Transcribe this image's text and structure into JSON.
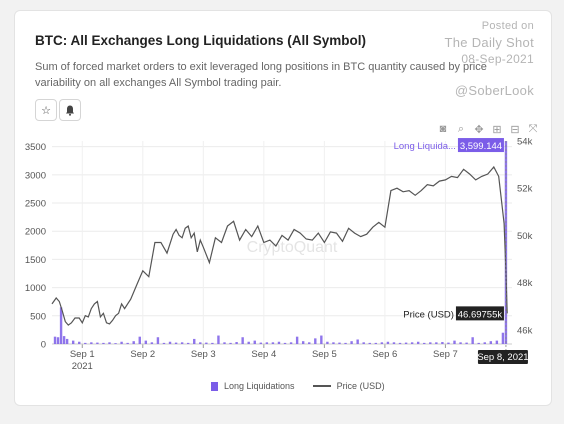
{
  "header": {
    "title": "BTC: All Exchanges Long Liquidations (All Symbol)",
    "subtitle": "Sum of forced market orders to exit leveraged long positions in BTC quantity caused by price variability on all exchanges All Symbol trading pair."
  },
  "watermark": {
    "line1": "Posted on",
    "line2": "The Daily Shot",
    "line3": "08-Sep-2021",
    "line4": "@SoberLook"
  },
  "colors": {
    "bar": "#7b5de8",
    "price_line": "#555555",
    "tooltip_bg": "#222222"
  },
  "icons": {
    "star": "star-icon",
    "bell": "bell-icon",
    "camera": "camera-icon",
    "zoom": "zoom-icon",
    "pan": "pan-icon",
    "zoom_in": "zoom-in-icon",
    "zoom_out": "zoom-out-icon",
    "autoscale": "autoscale-icon"
  },
  "chart_data": {
    "type": "bar",
    "title": "BTC: All Exchanges Long Liquidations (All Symbol)",
    "x_tick_labels": [
      "Sep 1",
      "Sep 2",
      "Sep 3",
      "Sep 4",
      "Sep 5",
      "Sep 6",
      "Sep 7"
    ],
    "x_year_label": "2021",
    "x_range": [
      "Aug 31, 2021 12:00",
      "Sep 8, 2021 01:00"
    ],
    "y_left": {
      "ticks": [
        0,
        500,
        1000,
        1500,
        2000,
        2500,
        3000,
        3500
      ],
      "range": [
        0,
        3600
      ]
    },
    "y_right": {
      "tick_labels": [
        "46k",
        "48k",
        "50k",
        "52k",
        "54k"
      ],
      "ticks": [
        46000,
        48000,
        50000,
        52000,
        54000
      ],
      "range": [
        45400,
        54000
      ]
    },
    "grid": true,
    "legend_position": "bottom",
    "watermark_text": "CryptoQuant",
    "series": [
      {
        "name": "Long Liquidations",
        "type": "bar",
        "axis": "left",
        "x": [
          -0.45,
          -0.4,
          -0.35,
          -0.3,
          -0.25,
          -0.15,
          -0.05,
          0.05,
          0.15,
          0.25,
          0.35,
          0.45,
          0.55,
          0.65,
          0.75,
          0.85,
          0.95,
          1.05,
          1.15,
          1.25,
          1.35,
          1.45,
          1.55,
          1.65,
          1.75,
          1.85,
          1.95,
          2.05,
          2.15,
          2.25,
          2.35,
          2.45,
          2.55,
          2.65,
          2.75,
          2.85,
          2.95,
          3.05,
          3.15,
          3.25,
          3.35,
          3.45,
          3.55,
          3.65,
          3.75,
          3.85,
          3.95,
          4.05,
          4.15,
          4.25,
          4.35,
          4.45,
          4.55,
          4.65,
          4.75,
          4.85,
          4.95,
          5.05,
          5.15,
          5.25,
          5.35,
          5.45,
          5.55,
          5.65,
          5.75,
          5.85,
          5.95,
          6.05,
          6.15,
          6.25,
          6.35,
          6.45,
          6.55,
          6.65,
          6.75,
          6.85,
          6.95,
          7.0
        ],
        "values": [
          130,
          120,
          650,
          140,
          90,
          60,
          40,
          20,
          30,
          25,
          20,
          30,
          15,
          40,
          20,
          50,
          130,
          60,
          30,
          120,
          20,
          40,
          25,
          30,
          20,
          90,
          30,
          25,
          20,
          150,
          30,
          20,
          35,
          120,
          40,
          60,
          25,
          30,
          30,
          40,
          20,
          30,
          130,
          50,
          30,
          100,
          150,
          40,
          30,
          25,
          20,
          50,
          80,
          30,
          20,
          20,
          30,
          40,
          30,
          20,
          25,
          30,
          40,
          20,
          30,
          30,
          35,
          25,
          60,
          30,
          25,
          120,
          20,
          30,
          50,
          60,
          200,
          3599.144
        ]
      },
      {
        "name": "Price (USD)",
        "type": "line",
        "axis": "right",
        "x": [
          -0.5,
          -0.43,
          -0.38,
          -0.33,
          -0.28,
          -0.23,
          -0.18,
          -0.12,
          -0.05,
          0.0,
          0.05,
          0.1,
          0.15,
          0.2,
          0.25,
          0.3,
          0.35,
          0.4,
          0.45,
          0.5,
          0.55,
          0.6,
          0.65,
          0.7,
          0.8,
          0.9,
          1.0,
          1.1,
          1.2,
          1.3,
          1.4,
          1.5,
          1.55,
          1.6,
          1.65,
          1.7,
          1.75,
          1.8,
          1.85,
          1.9,
          1.95,
          2.0,
          2.1,
          2.2,
          2.3,
          2.4,
          2.5,
          2.6,
          2.7,
          2.8,
          2.9,
          3.0,
          3.1,
          3.2,
          3.3,
          3.4,
          3.5,
          3.6,
          3.7,
          3.8,
          3.9,
          4.0,
          4.1,
          4.2,
          4.3,
          4.4,
          4.5,
          4.6,
          4.7,
          4.8,
          4.9,
          5.0,
          5.1,
          5.2,
          5.3,
          5.4,
          5.5,
          5.6,
          5.7,
          5.8,
          5.9,
          6.0,
          6.1,
          6.2,
          6.3,
          6.4,
          6.5,
          6.6,
          6.7,
          6.8,
          6.88,
          6.93,
          6.97,
          7.0,
          7.02
        ],
        "values": [
          47100,
          47350,
          47200,
          46800,
          46350,
          46200,
          46300,
          46500,
          46500,
          46300,
          46600,
          46550,
          46900,
          47100,
          47200,
          46550,
          46700,
          46300,
          46250,
          46400,
          46600,
          46700,
          47100,
          46900,
          47300,
          47900,
          48500,
          48250,
          49700,
          49700,
          49250,
          50050,
          50250,
          50000,
          49900,
          50300,
          50400,
          49900,
          50100,
          49300,
          49800,
          49500,
          48850,
          49900,
          49700,
          50400,
          50600,
          49800,
          50250,
          49950,
          50400,
          49700,
          49800,
          49550,
          50000,
          49800,
          50250,
          50100,
          49850,
          49800,
          50100,
          49700,
          50150,
          50100,
          49750,
          50300,
          50100,
          49950,
          50050,
          50350,
          50550,
          50350,
          51900,
          52000,
          51850,
          51900,
          51700,
          51900,
          52150,
          52100,
          52300,
          52350,
          52500,
          52450,
          52800,
          52600,
          52350,
          52500,
          52600,
          52900,
          52500,
          51400,
          50500,
          48500,
          46697.55
        ]
      }
    ],
    "tooltips": [
      {
        "label": "Long Liquida...",
        "value": "3,599.144"
      },
      {
        "label": "Price (USD)",
        "value": "46.69755k"
      }
    ],
    "cursor_label": "Sep 8, 2021"
  }
}
